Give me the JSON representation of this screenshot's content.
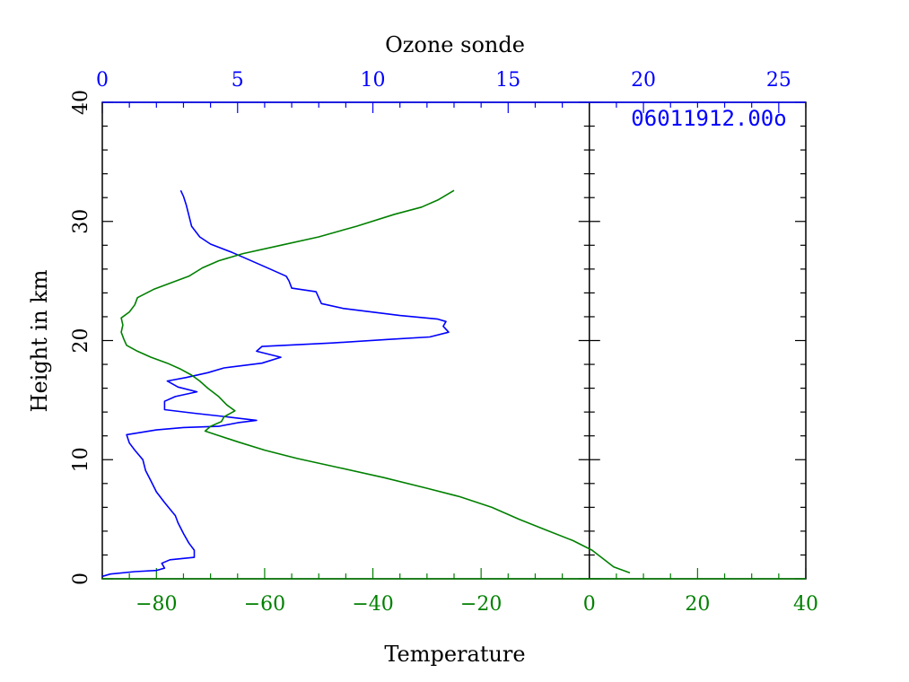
{
  "chart_data": {
    "type": "line",
    "title": "Ozone sonde",
    "xlabel": "Temperature",
    "ylabel": "Height in km",
    "annotation": "06011912.00o",
    "colors": {
      "ozone": "#0000ff",
      "temperature": "#008000",
      "axes": "#000000",
      "top_axis": "#0000ff",
      "bottom_axis": "#008000"
    },
    "axes": {
      "top": {
        "range": [
          0,
          26
        ],
        "ticks": [
          "0",
          "5",
          "10",
          "15",
          "20",
          "25"
        ],
        "tick_values": [
          0,
          5,
          10,
          15,
          20,
          25
        ]
      },
      "bottom": {
        "range": [
          -90,
          40
        ],
        "ticks": [
          "−80",
          "−60",
          "−40",
          "−20",
          "0",
          "20",
          "40"
        ],
        "tick_values": [
          -80,
          -60,
          -40,
          -20,
          0,
          20,
          40
        ]
      },
      "left": {
        "range": [
          0,
          40
        ],
        "ticks": [
          "0",
          "10",
          "20",
          "30",
          "40"
        ],
        "tick_values": [
          0,
          10,
          20,
          30,
          40
        ]
      }
    },
    "series": [
      {
        "key": "ozone",
        "axis": "top",
        "points": [
          [
            0,
            0.2
          ],
          [
            0.3,
            0.4
          ],
          [
            1.2,
            0.6
          ],
          [
            2.0,
            0.7
          ],
          [
            2.3,
            0.9
          ],
          [
            2.2,
            1.3
          ],
          [
            2.5,
            1.6
          ],
          [
            3.4,
            1.8
          ],
          [
            3.4,
            2.4
          ],
          [
            3.2,
            3.0
          ],
          [
            3.0,
            3.8
          ],
          [
            2.8,
            4.7
          ],
          [
            2.7,
            5.3
          ],
          [
            2.3,
            6.4
          ],
          [
            2.0,
            7.3
          ],
          [
            1.8,
            8.2
          ],
          [
            1.6,
            9.1
          ],
          [
            1.5,
            10.0
          ],
          [
            1.2,
            10.8
          ],
          [
            1.0,
            11.4
          ],
          [
            0.9,
            12.1
          ],
          [
            2.0,
            12.5
          ],
          [
            3.0,
            12.7
          ],
          [
            4.3,
            12.8
          ],
          [
            5.0,
            13.1
          ],
          [
            5.7,
            13.3
          ],
          [
            4.6,
            13.6
          ],
          [
            3.4,
            13.9
          ],
          [
            2.3,
            14.2
          ],
          [
            2.3,
            14.9
          ],
          [
            2.7,
            15.3
          ],
          [
            3.5,
            15.7
          ],
          [
            2.8,
            16.1
          ],
          [
            2.4,
            16.6
          ],
          [
            3.1,
            16.9
          ],
          [
            3.9,
            17.3
          ],
          [
            4.5,
            17.7
          ],
          [
            5.9,
            18.1
          ],
          [
            6.6,
            18.6
          ],
          [
            5.7,
            19.1
          ],
          [
            5.9,
            19.5
          ],
          [
            8.5,
            19.8
          ],
          [
            10.6,
            20.1
          ],
          [
            12.1,
            20.3
          ],
          [
            12.8,
            20.7
          ],
          [
            12.6,
            21.2
          ],
          [
            12.7,
            21.6
          ],
          [
            12.4,
            21.8
          ],
          [
            11.0,
            22.1
          ],
          [
            8.9,
            22.7
          ],
          [
            8.1,
            23.1
          ],
          [
            8.0,
            23.6
          ],
          [
            7.9,
            24.1
          ],
          [
            7.0,
            24.4
          ],
          [
            6.9,
            25.0
          ],
          [
            6.8,
            25.4
          ],
          [
            6.2,
            26.0
          ],
          [
            5.4,
            26.8
          ],
          [
            4.8,
            27.4
          ],
          [
            4.0,
            28.1
          ],
          [
            3.6,
            28.7
          ],
          [
            3.3,
            29.6
          ],
          [
            3.2,
            30.5
          ],
          [
            3.1,
            31.4
          ],
          [
            3.0,
            32.1
          ],
          [
            2.9,
            32.6
          ]
        ]
      },
      {
        "key": "temperature",
        "axis": "bottom",
        "points": [
          [
            7.5,
            0.5
          ],
          [
            4.5,
            1.0
          ],
          [
            2.5,
            1.7
          ],
          [
            0.5,
            2.4
          ],
          [
            -3.0,
            3.2
          ],
          [
            -8.0,
            4.1
          ],
          [
            -13.0,
            5.0
          ],
          [
            -18.0,
            6.0
          ],
          [
            -24.0,
            6.9
          ],
          [
            -30.0,
            7.6
          ],
          [
            -38.0,
            8.5
          ],
          [
            -46.0,
            9.3
          ],
          [
            -54.0,
            10.1
          ],
          [
            -60.0,
            10.8
          ],
          [
            -65.0,
            11.5
          ],
          [
            -69.0,
            12.1
          ],
          [
            -71.0,
            12.4
          ],
          [
            -70.0,
            12.8
          ],
          [
            -68.0,
            13.2
          ],
          [
            -67.5,
            13.6
          ],
          [
            -65.5,
            14.1
          ],
          [
            -67.0,
            14.6
          ],
          [
            -68.5,
            15.3
          ],
          [
            -70.5,
            16.0
          ],
          [
            -72.0,
            16.6
          ],
          [
            -73.5,
            17.1
          ],
          [
            -75.5,
            17.6
          ],
          [
            -78.0,
            18.1
          ],
          [
            -81.0,
            18.6
          ],
          [
            -83.5,
            19.1
          ],
          [
            -85.5,
            19.6
          ],
          [
            -86.0,
            20.1
          ],
          [
            -86.5,
            20.7
          ],
          [
            -86.2,
            21.3
          ],
          [
            -86.5,
            21.9
          ],
          [
            -85.0,
            22.4
          ],
          [
            -84.0,
            23.0
          ],
          [
            -83.5,
            23.6
          ],
          [
            -80.5,
            24.3
          ],
          [
            -77.0,
            24.9
          ],
          [
            -74.0,
            25.4
          ],
          [
            -71.5,
            26.1
          ],
          [
            -68.5,
            26.7
          ],
          [
            -64.0,
            27.3
          ],
          [
            -57.0,
            28.0
          ],
          [
            -50.0,
            28.7
          ],
          [
            -43.0,
            29.6
          ],
          [
            -36.0,
            30.6
          ],
          [
            -31.0,
            31.2
          ],
          [
            -28.0,
            31.8
          ],
          [
            -25.0,
            32.6
          ]
        ]
      }
    ]
  }
}
